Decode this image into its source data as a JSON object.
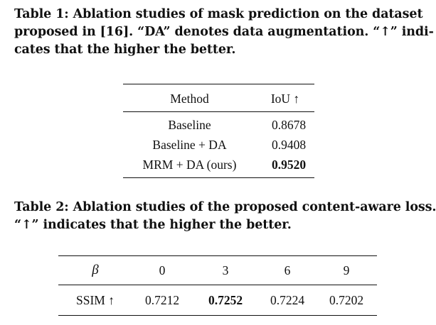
{
  "table1": {
    "caption_lines": [
      "Table 1: Ablation studies of mask prediction on the dataset",
      "proposed in [16]. “DA” denotes data augmentation. “↑” indi-",
      "cates that the higher the better."
    ],
    "headers": [
      "Method",
      "IoU ↑"
    ],
    "rows": [
      {
        "method": "Baseline",
        "iou": "0.8678"
      },
      {
        "method": "Baseline + DA",
        "iou": "0.9408"
      },
      {
        "method": "MRM + DA (ours)",
        "iou": "0.9520"
      }
    ],
    "best_row_index": 2
  },
  "table2": {
    "caption_lines": [
      "Table 2: Ablation studies of the proposed content-aware loss.",
      "“↑” indicates that the higher the better."
    ],
    "headers": [
      "β",
      "0",
      "3",
      "6",
      "9"
    ],
    "row": {
      "label": "SSIM ↑",
      "values": [
        "0.7212",
        "0.7252",
        "0.7224",
        "0.7202"
      ]
    },
    "best_value_index": 1
  }
}
